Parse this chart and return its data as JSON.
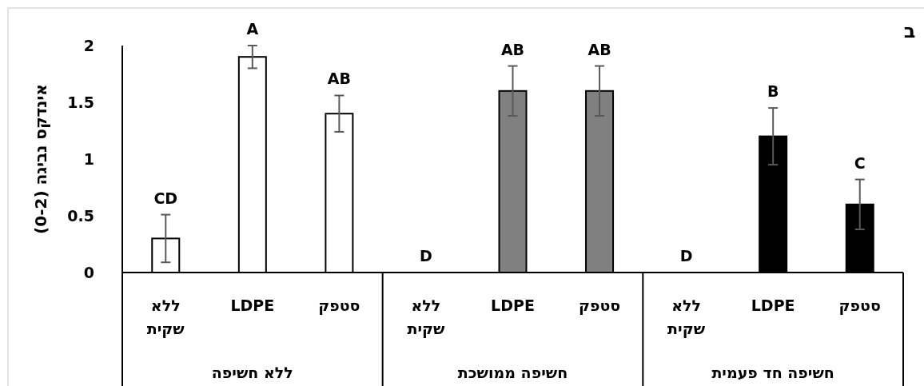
{
  "chart_data": {
    "type": "bar",
    "title": "ב",
    "ylabel": "אינדקס נביגה (0-2)",
    "categories": [
      "ללא\nשקית",
      "LDPE",
      "סטפק",
      "ללא\nשקית",
      "LDPE",
      "סטפק",
      "ללא\nשקית",
      "LDPE",
      "סטפק"
    ],
    "values": [
      0.3,
      1.9,
      1.4,
      0,
      1.6,
      1.6,
      0,
      1.2,
      0.6
    ],
    "errors": [
      0.21,
      0.1,
      0.16,
      null,
      0.22,
      0.22,
      null,
      0.25,
      0.22
    ],
    "colors": [
      "#ffffff",
      "#ffffff",
      "#ffffff",
      "#808080",
      "#808080",
      "#808080",
      "#000000",
      "#000000",
      "#000000"
    ],
    "annotations": [
      "CD",
      "A",
      "AB",
      "D",
      "AB",
      "AB",
      "D",
      "B",
      "C",
      "ללא חשיפה",
      "חשיפה ממושכת",
      "חשיפה חד פעמית"
    ],
    "ylim": [
      0,
      2
    ],
    "yticks": [
      0,
      0.5,
      1,
      1.5,
      2
    ],
    "grid": false
  }
}
